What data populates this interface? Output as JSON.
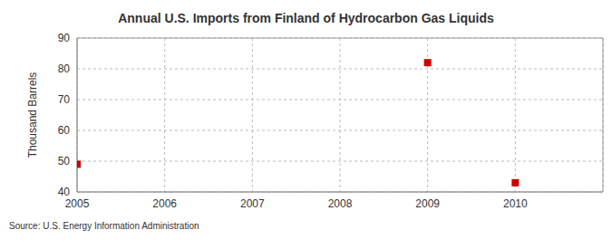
{
  "chart_data": {
    "type": "scatter",
    "title": "Annual U.S. Imports from Finland of Hydrocarbon Gas Liquids",
    "y_label": "Thousand Barrels",
    "source": "Source: U.S. Energy Information Administration",
    "x": [
      2005,
      2009,
      2010
    ],
    "values": [
      49,
      82,
      43
    ],
    "color": "#cc0000",
    "marker": "square",
    "xlim": [
      2005,
      2011
    ],
    "xticks": [
      2005,
      2006,
      2007,
      2008,
      2009,
      2010
    ],
    "ylim": [
      40,
      90
    ],
    "yticks": [
      40,
      50,
      60,
      70,
      80,
      90
    ],
    "grid": true
  }
}
